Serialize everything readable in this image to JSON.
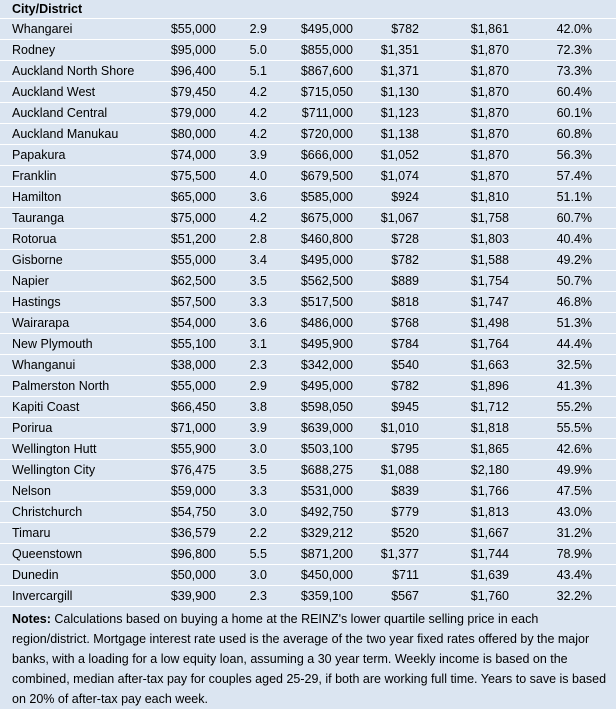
{
  "header": {
    "title": "City/District"
  },
  "rows": [
    {
      "name": "Whangarei",
      "income": "$55,000",
      "multiple": "2.9",
      "price": "$495,000",
      "weekly": "$782",
      "pay": "$1,861",
      "pct": "42.0%"
    },
    {
      "name": "Rodney",
      "income": "$95,000",
      "multiple": "5.0",
      "price": "$855,000",
      "weekly": "$1,351",
      "pay": "$1,870",
      "pct": "72.3%"
    },
    {
      "name": "Auckland North Shore",
      "income": "$96,400",
      "multiple": "5.1",
      "price": "$867,600",
      "weekly": "$1,371",
      "pay": "$1,870",
      "pct": "73.3%"
    },
    {
      "name": "Auckland West",
      "income": "$79,450",
      "multiple": "4.2",
      "price": "$715,050",
      "weekly": "$1,130",
      "pay": "$1,870",
      "pct": "60.4%"
    },
    {
      "name": "Auckland Central",
      "income": "$79,000",
      "multiple": "4.2",
      "price": "$711,000",
      "weekly": "$1,123",
      "pay": "$1,870",
      "pct": "60.1%"
    },
    {
      "name": "Auckland Manukau",
      "income": "$80,000",
      "multiple": "4.2",
      "price": "$720,000",
      "weekly": "$1,138",
      "pay": "$1,870",
      "pct": "60.8%"
    },
    {
      "name": "Papakura",
      "income": "$74,000",
      "multiple": "3.9",
      "price": "$666,000",
      "weekly": "$1,052",
      "pay": "$1,870",
      "pct": "56.3%"
    },
    {
      "name": "Franklin",
      "income": "$75,500",
      "multiple": "4.0",
      "price": "$679,500",
      "weekly": "$1,074",
      "pay": "$1,870",
      "pct": "57.4%"
    },
    {
      "name": "Hamilton",
      "income": "$65,000",
      "multiple": "3.6",
      "price": "$585,000",
      "weekly": "$924",
      "pay": "$1,810",
      "pct": "51.1%"
    },
    {
      "name": "Tauranga",
      "income": "$75,000",
      "multiple": "4.2",
      "price": "$675,000",
      "weekly": "$1,067",
      "pay": "$1,758",
      "pct": "60.7%"
    },
    {
      "name": "Rotorua",
      "income": "$51,200",
      "multiple": "2.8",
      "price": "$460,800",
      "weekly": "$728",
      "pay": "$1,803",
      "pct": "40.4%"
    },
    {
      "name": "Gisborne",
      "income": "$55,000",
      "multiple": "3.4",
      "price": "$495,000",
      "weekly": "$782",
      "pay": "$1,588",
      "pct": "49.2%"
    },
    {
      "name": "Napier",
      "income": "$62,500",
      "multiple": "3.5",
      "price": "$562,500",
      "weekly": "$889",
      "pay": "$1,754",
      "pct": "50.7%"
    },
    {
      "name": "Hastings",
      "income": "$57,500",
      "multiple": "3.3",
      "price": "$517,500",
      "weekly": "$818",
      "pay": "$1,747",
      "pct": "46.8%"
    },
    {
      "name": "Wairarapa",
      "income": "$54,000",
      "multiple": "3.6",
      "price": "$486,000",
      "weekly": "$768",
      "pay": "$1,498",
      "pct": "51.3%"
    },
    {
      "name": "New Plymouth",
      "income": "$55,100",
      "multiple": "3.1",
      "price": "$495,900",
      "weekly": "$784",
      "pay": "$1,764",
      "pct": "44.4%"
    },
    {
      "name": "Whanganui",
      "income": "$38,000",
      "multiple": "2.3",
      "price": "$342,000",
      "weekly": "$540",
      "pay": "$1,663",
      "pct": "32.5%"
    },
    {
      "name": "Palmerston North",
      "income": "$55,000",
      "multiple": "2.9",
      "price": "$495,000",
      "weekly": "$782",
      "pay": "$1,896",
      "pct": "41.3%"
    },
    {
      "name": "Kapiti Coast",
      "income": "$66,450",
      "multiple": "3.8",
      "price": "$598,050",
      "weekly": "$945",
      "pay": "$1,712",
      "pct": "55.2%"
    },
    {
      "name": "Porirua",
      "income": "$71,000",
      "multiple": "3.9",
      "price": "$639,000",
      "weekly": "$1,010",
      "pay": "$1,818",
      "pct": "55.5%"
    },
    {
      "name": "Wellington Hutt",
      "income": "$55,900",
      "multiple": "3.0",
      "price": "$503,100",
      "weekly": "$795",
      "pay": "$1,865",
      "pct": "42.6%"
    },
    {
      "name": "Wellington City",
      "income": "$76,475",
      "multiple": "3.5",
      "price": "$688,275",
      "weekly": "$1,088",
      "pay": "$2,180",
      "pct": "49.9%"
    },
    {
      "name": "Nelson",
      "income": "$59,000",
      "multiple": "3.3",
      "price": "$531,000",
      "weekly": "$839",
      "pay": "$1,766",
      "pct": "47.5%"
    },
    {
      "name": "Christchurch",
      "income": "$54,750",
      "multiple": "3.0",
      "price": "$492,750",
      "weekly": "$779",
      "pay": "$1,813",
      "pct": "43.0%"
    },
    {
      "name": "Timaru",
      "income": "$36,579",
      "multiple": "2.2",
      "price": "$329,212",
      "weekly": "$520",
      "pay": "$1,667",
      "pct": "31.2%"
    },
    {
      "name": "Queenstown",
      "income": "$96,800",
      "multiple": "5.5",
      "price": "$871,200",
      "weekly": "$1,377",
      "pay": "$1,744",
      "pct": "78.9%"
    },
    {
      "name": "Dunedin",
      "income": "$50,000",
      "multiple": "3.0",
      "price": "$450,000",
      "weekly": "$711",
      "pay": "$1,639",
      "pct": "43.4%"
    },
    {
      "name": "Invercargill",
      "income": "$39,900",
      "multiple": "2.3",
      "price": "$359,100",
      "weekly": "$567",
      "pay": "$1,760",
      "pct": "32.2%"
    }
  ],
  "notes": {
    "label": "Notes:",
    "text": " Calculations based on buying a home at the REINZ's lower quartile selling price in each region/district. Mortgage interest rate used is the average of the two year fixed rates offered by the major banks, with a loading for a low equity loan, assuming a 30 year term. Weekly income is based on the combined, median after-tax pay for couples aged 25-29, if both are working full time. Years to save is based on 20% of after-tax pay each week."
  }
}
